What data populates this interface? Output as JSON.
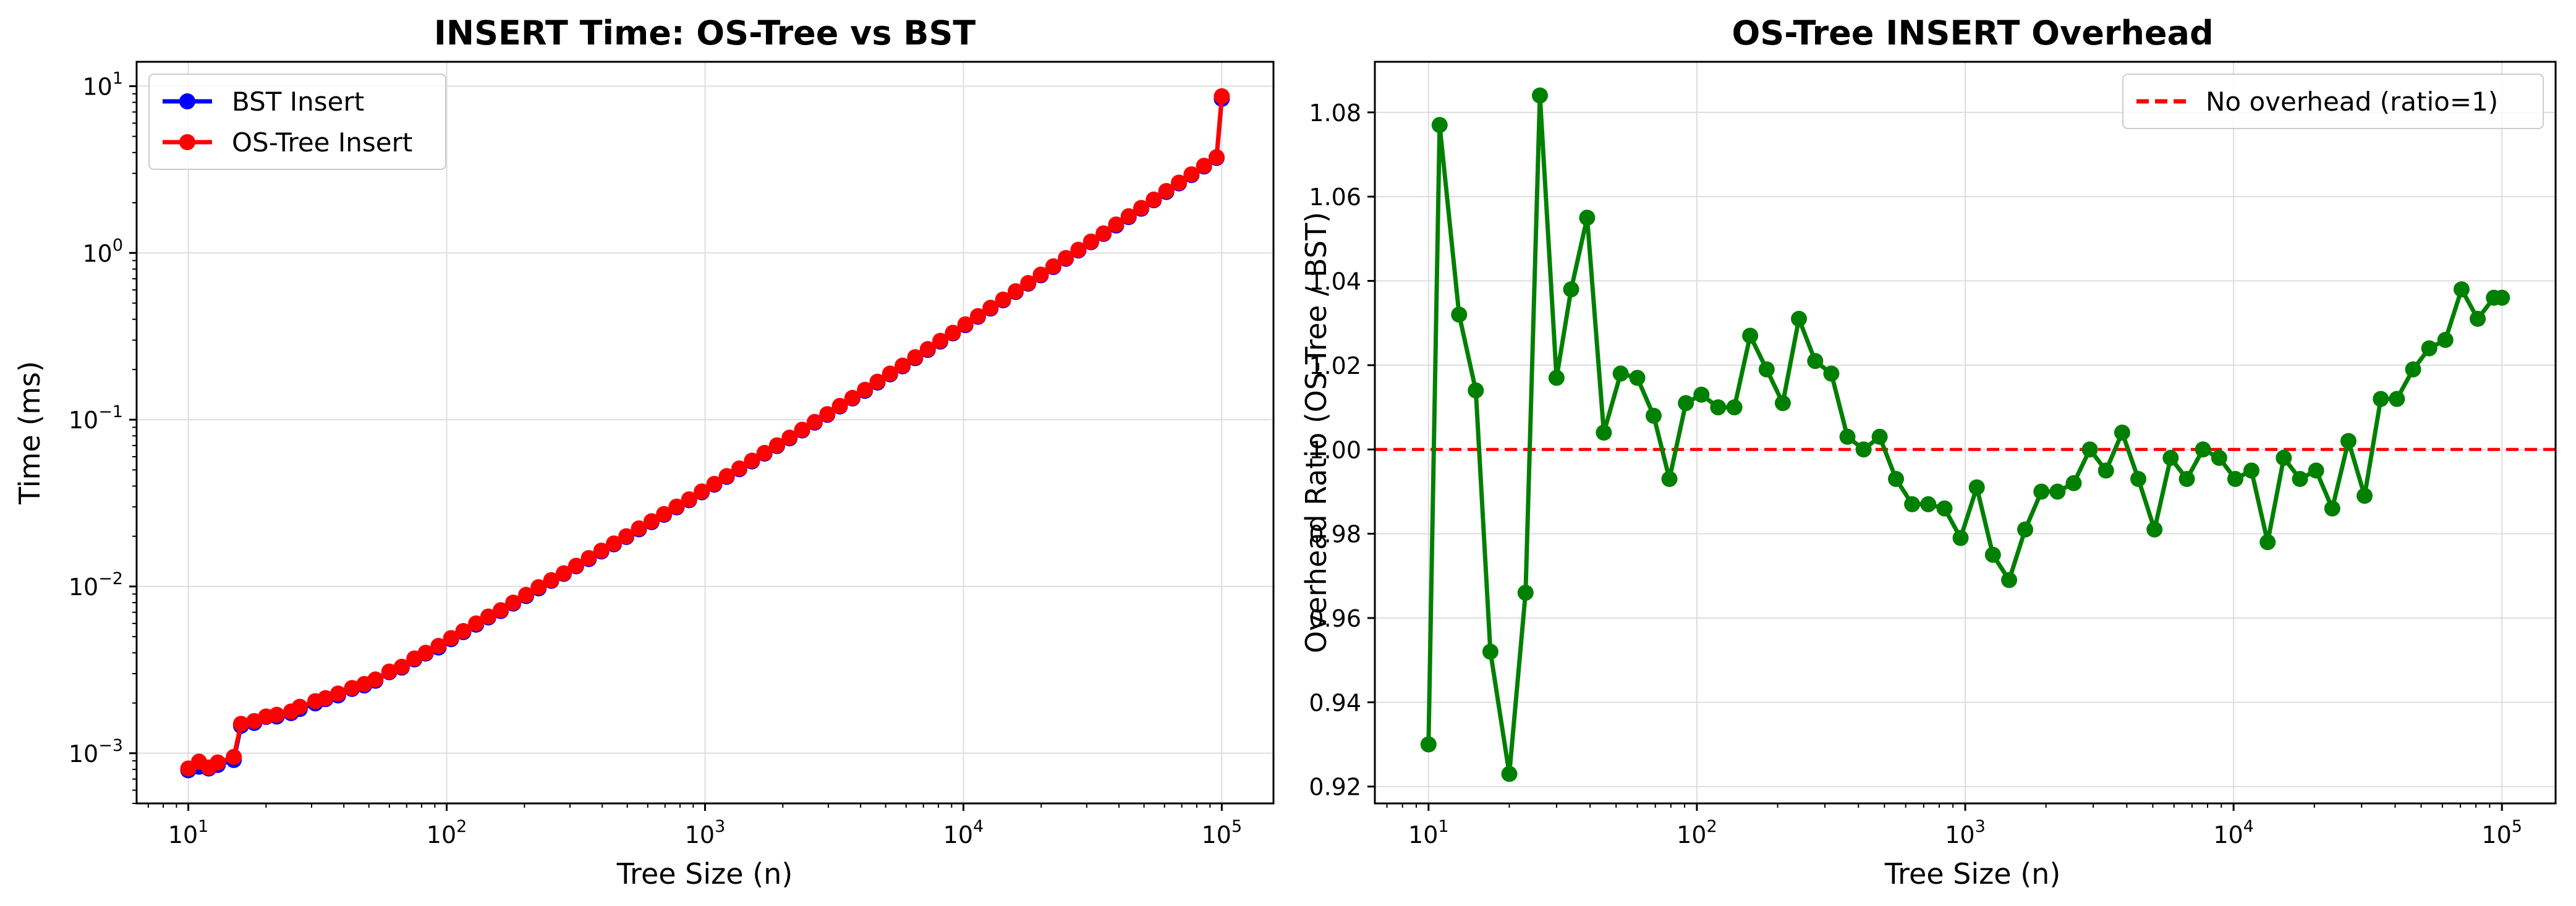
{
  "chart_data": [
    {
      "type": "line",
      "title": "INSERT Time: OS-Tree vs BST",
      "xlabel": "Tree Size (n)",
      "ylabel": "Time (ms)",
      "xscale": "log",
      "yscale": "log",
      "xlim": [
        10,
        100000
      ],
      "ylim": [
        0.0005,
        14
      ],
      "xticks": [
        "10^1",
        "10^2",
        "10^3",
        "10^4",
        "10^5"
      ],
      "yticks": [
        "10^-3",
        "10^-2",
        "10^-1",
        "10^0",
        "10^1"
      ],
      "grid": true,
      "legend_position": "top-left",
      "x": [
        10,
        11,
        12,
        13,
        15,
        16,
        18,
        20,
        22,
        25,
        27,
        31,
        34,
        38,
        43,
        48,
        53,
        60,
        67,
        75,
        83,
        93,
        104,
        116,
        130,
        145,
        162,
        181,
        203,
        227,
        254,
        284,
        317,
        355,
        397,
        444,
        496,
        555,
        621,
        694,
        776,
        868,
        971,
        1086,
        1214,
        1358,
        1519,
        1699,
        1900,
        2125,
        2376,
        2658,
        2973,
        3325,
        3718,
        4159,
        4651,
        5202,
        5818,
        6507,
        7278,
        8140,
        9103,
        10181,
        11387,
        12735,
        14243,
        15930,
        17816,
        19926,
        22286,
        24925,
        27876,
        31177,
        34869,
        38999,
        43617,
        48782,
        54559,
        61020,
        68246,
        76328,
        85367,
        95476,
        100000
      ],
      "series": [
        {
          "name": "BST Insert",
          "color": "#0000ff",
          "values": [
            0.00079,
            0.00083,
            0.00081,
            0.00085,
            0.00091,
            0.00146,
            0.00152,
            0.00165,
            0.00166,
            0.00174,
            0.00184,
            0.00199,
            0.00211,
            0.00222,
            0.00243,
            0.00255,
            0.00272,
            0.00306,
            0.00326,
            0.00365,
            0.00396,
            0.0043,
            0.00483,
            0.00532,
            0.0059,
            0.00652,
            0.00712,
            0.0079,
            0.00876,
            0.00974,
            0.0108,
            0.0119,
            0.0132,
            0.0146,
            0.0162,
            0.0179,
            0.0198,
            0.022,
            0.0243,
            0.0269,
            0.0298,
            0.0329,
            0.0367,
            0.0408,
            0.0454,
            0.0505,
            0.0562,
            0.0626,
            0.0695,
            0.0773,
            0.0862,
            0.096,
            0.107,
            0.12,
            0.134,
            0.149,
            0.167,
            0.187,
            0.209,
            0.234,
            0.262,
            0.294,
            0.329,
            0.369,
            0.414,
            0.464,
            0.52,
            0.583,
            0.654,
            0.734,
            0.823,
            0.923,
            1.035,
            1.16,
            1.3,
            1.46,
            1.64,
            1.84,
            2.07,
            2.32,
            2.61,
            2.93,
            3.3,
            3.71,
            8.4
          ]
        },
        {
          "name": "OS-Tree Insert",
          "color": "#ff0000",
          "values": [
            0.00081,
            0.00089,
            0.00082,
            0.00088,
            0.00095,
            0.0015,
            0.00156,
            0.00166,
            0.0017,
            0.00178,
            0.0019,
            0.00205,
            0.00214,
            0.00228,
            0.00246,
            0.0026,
            0.00277,
            0.00309,
            0.0033,
            0.0037,
            0.004,
            0.0044,
            0.0049,
            0.0054,
            0.006,
            0.0066,
            0.0072,
            0.008,
            0.0089,
            0.0099,
            0.0109,
            0.012,
            0.0133,
            0.0148,
            0.0164,
            0.0181,
            0.02,
            0.0223,
            0.0246,
            0.0272,
            0.0301,
            0.0333,
            0.0371,
            0.0412,
            0.0459,
            0.051,
            0.0568,
            0.0632,
            0.0702,
            0.0781,
            0.087,
            0.0969,
            0.108,
            0.121,
            0.135,
            0.151,
            0.169,
            0.189,
            0.211,
            0.237,
            0.265,
            0.297,
            0.332,
            0.373,
            0.418,
            0.469,
            0.525,
            0.589,
            0.66,
            0.741,
            0.831,
            0.932,
            1.045,
            1.17,
            1.31,
            1.48,
            1.66,
            1.86,
            2.09,
            2.35,
            2.64,
            2.96,
            3.33,
            3.75,
            8.7
          ]
        }
      ]
    },
    {
      "type": "line",
      "title": "OS-Tree INSERT Overhead",
      "xlabel": "Tree Size (n)",
      "ylabel": "Overhead Ratio (OS-Tree / BST)",
      "xscale": "log",
      "xlim": [
        10,
        100000
      ],
      "ylim": [
        0.916,
        1.092
      ],
      "xticks": [
        "10^1",
        "10^2",
        "10^3",
        "10^4",
        "10^5"
      ],
      "yticks": [
        "0.92",
        "0.94",
        "0.96",
        "0.98",
        "1.00",
        "1.02",
        "1.04",
        "1.06",
        "1.08"
      ],
      "grid": true,
      "legend_position": "top-right",
      "reference_line": {
        "name": "No overhead (ratio=1)",
        "y": 1.0,
        "color": "#ff0000",
        "style": "dashed"
      },
      "series": [
        {
          "name": "",
          "color": "#008000",
          "x": [
            10,
            11,
            13,
            15,
            17,
            20,
            23,
            26,
            30,
            34,
            39,
            45,
            52,
            60,
            69,
            79,
            91,
            104,
            120,
            138,
            158,
            182,
            209,
            240,
            276,
            317,
            364,
            418,
            480,
            552,
            634,
            728,
            837,
            961,
            1104,
            1268,
            1457,
            1673,
            1922,
            2208,
            2537,
            2914,
            3347,
            3845,
            4417,
            5074,
            5829,
            6696,
            7692,
            8836,
            10151,
            11660,
            13395,
            15387,
            17676,
            20305,
            23325,
            26794,
            30779,
            35357,
            40616,
            46656,
            53596,
            61567,
            70724,
            81243,
            93327,
            100000
          ],
          "values": [
            0.93,
            1.077,
            1.032,
            1.014,
            0.952,
            0.923,
            0.966,
            1.084,
            1.017,
            1.038,
            1.055,
            1.004,
            1.018,
            1.017,
            1.008,
            0.993,
            1.011,
            1.013,
            1.01,
            1.01,
            1.027,
            1.019,
            1.011,
            1.031,
            1.021,
            1.018,
            1.003,
            1.0,
            1.003,
            0.993,
            0.987,
            0.987,
            0.986,
            0.979,
            0.991,
            0.975,
            0.969,
            0.981,
            0.99,
            0.99,
            0.992,
            1.0,
            0.995,
            1.004,
            0.993,
            0.981,
            0.998,
            0.993,
            1.0,
            0.998,
            0.993,
            0.995,
            0.978,
            0.998,
            0.993,
            0.995,
            0.986,
            1.002,
            0.989,
            1.012,
            1.012,
            1.019,
            1.024,
            1.026,
            1.038,
            1.031,
            1.036,
            1.036
          ]
        }
      ]
    }
  ]
}
